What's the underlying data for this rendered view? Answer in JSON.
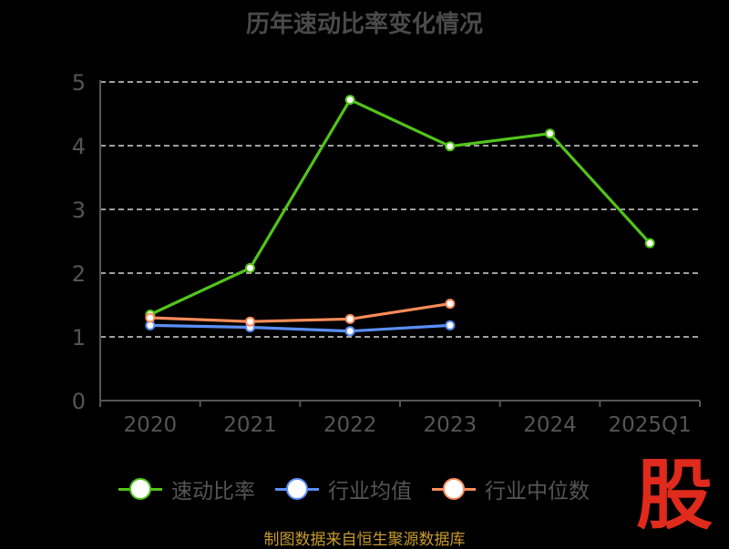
{
  "chart_data": {
    "type": "line",
    "title": "历年速动比率变化情况",
    "categories": [
      "2020",
      "2021",
      "2022",
      "2023",
      "2024",
      "2025Q1"
    ],
    "ylim": [
      0,
      5
    ],
    "yticks": [
      "0",
      "1",
      "2",
      "3",
      "4",
      "5"
    ],
    "grid": true,
    "legend_position": "bottom",
    "series": [
      {
        "name": "速动比率",
        "color": "#52c41a",
        "values": [
          1.35,
          2.08,
          4.72,
          3.99,
          4.19,
          2.47
        ]
      },
      {
        "name": "行业均值",
        "color": "#5b8ff9",
        "values": [
          1.18,
          1.15,
          1.09,
          1.18,
          null,
          null
        ]
      },
      {
        "name": "行业中位数",
        "color": "#ff8c5a",
        "values": [
          1.3,
          1.24,
          1.28,
          1.52,
          null,
          null
        ]
      }
    ]
  },
  "watermark": "股",
  "source": "制图数据来自恒生聚源数据库"
}
